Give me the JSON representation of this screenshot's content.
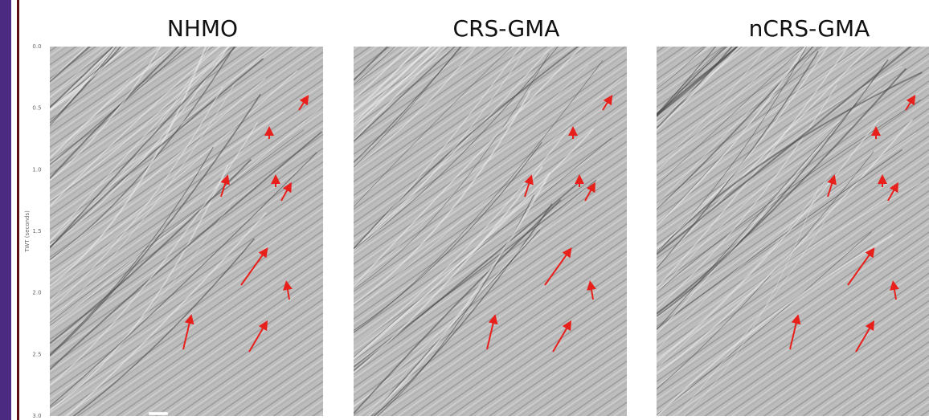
{
  "panels": [
    {
      "title": "NHMO"
    },
    {
      "title": "CRS-GMA"
    },
    {
      "title": "nCRS-GMA"
    }
  ],
  "axis": {
    "label": "TWT (seconds)",
    "ticks": [
      "0.0",
      "0.5",
      "1.0",
      "1.5",
      "2.0",
      "2.5",
      "3.0"
    ]
  }
}
